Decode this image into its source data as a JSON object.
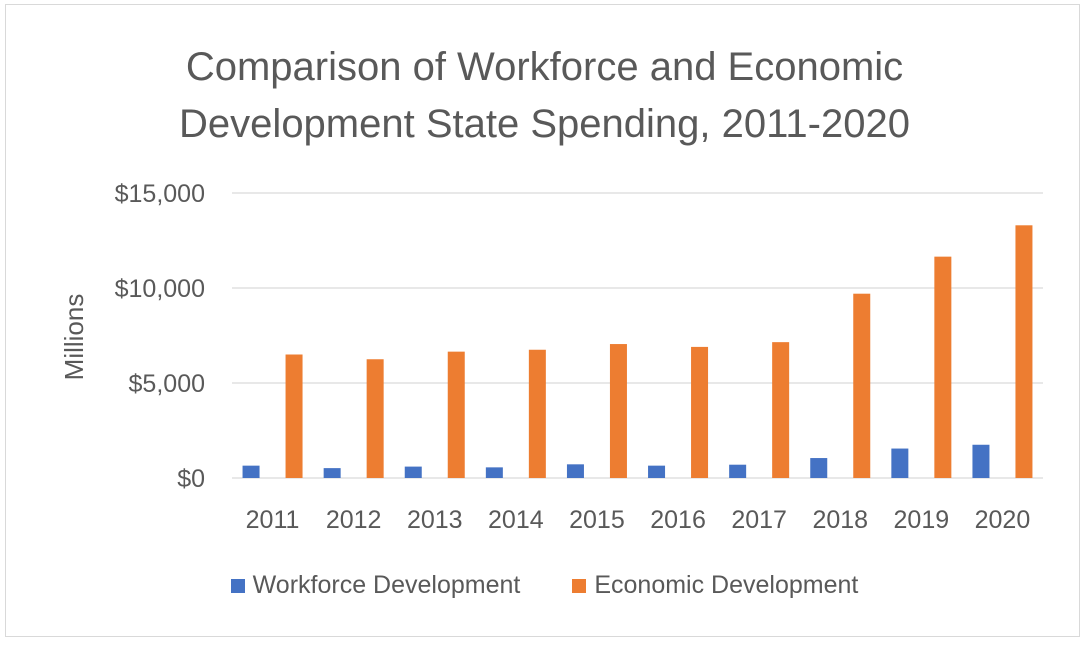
{
  "chart_data": {
    "type": "bar",
    "title_lines": [
      "Comparison of Workforce and Economic",
      "Development State Spending, 2011-2020"
    ],
    "xlabel": "",
    "ylabel": "Millions",
    "ylim": [
      0,
      15000
    ],
    "y_ticks": [
      0,
      5000,
      10000,
      15000
    ],
    "y_tick_labels": [
      "$0",
      "$5,000",
      "$10,000",
      "$15,000"
    ],
    "grid": true,
    "legend_position": "bottom",
    "categories": [
      "2011",
      "2012",
      "2013",
      "2014",
      "2015",
      "2016",
      "2017",
      "2018",
      "2019",
      "2020"
    ],
    "series": [
      {
        "name": "Workforce Development",
        "color": "#4472c4",
        "values": [
          650,
          520,
          600,
          560,
          720,
          650,
          700,
          1050,
          1550,
          1750
        ]
      },
      {
        "name": "Economic Development",
        "color": "#ed7d31",
        "values": [
          6500,
          6250,
          6650,
          6750,
          7050,
          6900,
          7150,
          9700,
          11650,
          13300
        ]
      }
    ]
  }
}
